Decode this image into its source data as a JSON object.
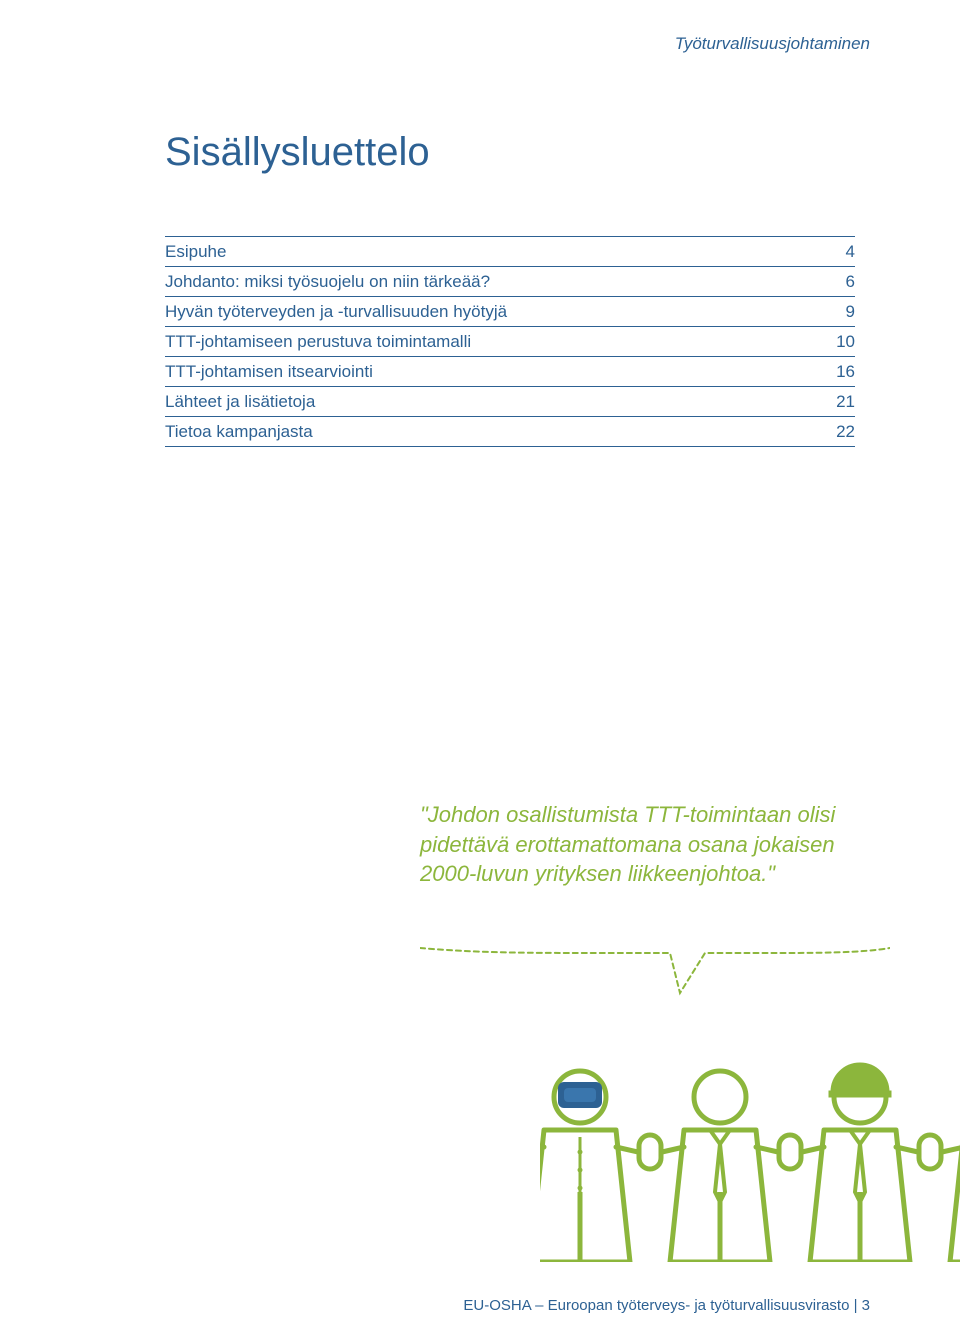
{
  "colors": {
    "brandBlue": "#2d6193",
    "tocText": "#2d6193",
    "tocBorder": "#2d6193",
    "quoteGreen": "#8cb63c",
    "figureStroke": "#8cb63c",
    "helmetFill": "#8cb63c",
    "visorFill": "#2d6193",
    "dash": "5,4"
  },
  "header": "Työturvallisuusjohtaminen",
  "title": "Sisällysluettelo",
  "toc": [
    {
      "label": "Esipuhe",
      "page": "4"
    },
    {
      "label": "Johdanto: miksi työsuojelu on niin tärkeää?",
      "page": "6"
    },
    {
      "label": "Hyvän työterveyden ja -turvallisuuden hyötyjä",
      "page": "9"
    },
    {
      "label": "TTT-johtamiseen perustuva toimintamalli",
      "page": "10"
    },
    {
      "label": "TTT-johtamisen itsearviointi",
      "page": "16"
    },
    {
      "label": "Lähteet ja lisätietoja",
      "page": "21"
    },
    {
      "label": "Tietoa kampanjasta",
      "page": "22"
    }
  ],
  "quote": "\"Johdon osallistumista TTT-toimintaan olisi pidettävä erottamattomana osana jokaisen 2000-luvun yrityksen liikkeenjohtoa.\"",
  "footer": {
    "text": "EU-OSHA – Euroopan työterveys- ja työturvallisuusvirasto | ",
    "page": "3"
  }
}
